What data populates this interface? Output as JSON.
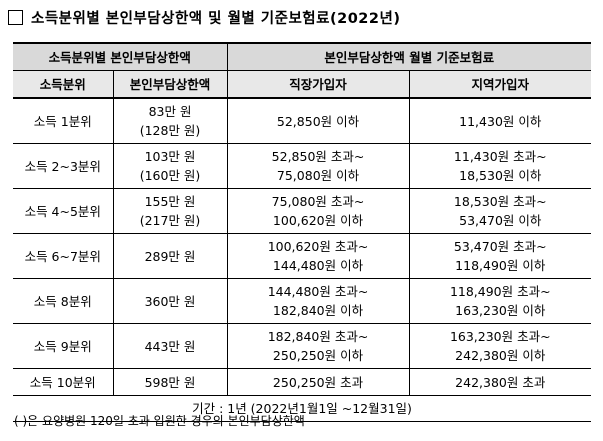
{
  "title": "소득분위별 본인부담상한액 및 월별 기준보험료(2022년)",
  "header": {
    "group_left": "소득분위별 본인부담상한액",
    "group_right": "본인부담상한액 월별 기준보험료",
    "col_decile": "소득분위",
    "col_cap": "본인부담상한액",
    "col_workplace": "직장가입자",
    "col_regional": "지역가입자"
  },
  "rows": [
    {
      "decile": "소득 1분위",
      "cap1": "83만 원",
      "cap2": "(128만 원)",
      "work1": "52,850원 이하",
      "work2": "",
      "reg1": "11,430원 이하",
      "reg2": ""
    },
    {
      "decile": "소득 2~3분위",
      "cap1": "103만 원",
      "cap2": "(160만 원)",
      "work1": "52,850원 초과~",
      "work2": "75,080원 이하",
      "reg1": "11,430원 초과~",
      "reg2": "18,530원 이하"
    },
    {
      "decile": "소득 4~5분위",
      "cap1": "155만 원",
      "cap2": "(217만 원)",
      "work1": "75,080원 초과~",
      "work2": "100,620원 이하",
      "reg1": "18,530원 초과~",
      "reg2": "53,470원 이하"
    },
    {
      "decile": "소득 6~7분위",
      "cap1": "289만 원",
      "cap2": "",
      "work1": "100,620원 초과~",
      "work2": "144,480원 이하",
      "reg1": "53,470원 초과~",
      "reg2": "118,490원 이하"
    },
    {
      "decile": "소득 8분위",
      "cap1": "360만 원",
      "cap2": "",
      "work1": "144,480원 초과~",
      "work2": "182,840원 이하",
      "reg1": "118,490원 초과~",
      "reg2": "163,230원 이하"
    },
    {
      "decile": "소득 9분위",
      "cap1": "443만 원",
      "cap2": "",
      "work1": "182,840원 초과~",
      "work2": "250,250원 이하",
      "reg1": "163,230원 초과~",
      "reg2": "242,380원 이하"
    },
    {
      "decile": "소득 10분위",
      "cap1": "598만 원",
      "cap2": "",
      "work1": "250,250원 초과",
      "work2": "",
      "reg1": "242,380원 초과",
      "reg2": ""
    }
  ],
  "period": "기간 : 1년 (2022년1월1일 ~12월31일)",
  "footnote": "(   )은 요양병원 120일 초과 입원한 경우의 본인부담상한액"
}
